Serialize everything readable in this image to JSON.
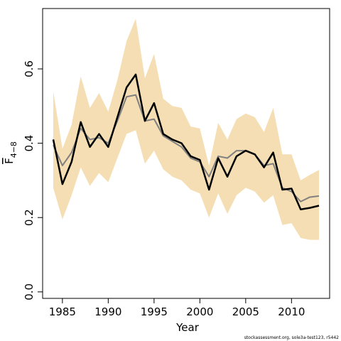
{
  "chart_data": {
    "type": "line",
    "x_label": "Year",
    "y_label": {
      "main": "F",
      "subscript": "4−8"
    },
    "footer": "stockassessment.org, sole3a-test123, r5442",
    "x": [
      1984,
      1985,
      1986,
      1987,
      1988,
      1989,
      1990,
      1991,
      1992,
      1993,
      1994,
      1995,
      1996,
      1997,
      1998,
      1999,
      2000,
      2001,
      2002,
      2003,
      2004,
      2005,
      2006,
      2007,
      2008,
      2009,
      2010,
      2011,
      2012,
      2013
    ],
    "band": {
      "color": "#f5deb3",
      "upper": [
        0.54,
        0.385,
        0.45,
        0.58,
        0.495,
        0.535,
        0.485,
        0.57,
        0.675,
        0.735,
        0.575,
        0.64,
        0.52,
        0.5,
        0.495,
        0.445,
        0.44,
        0.34,
        0.455,
        0.41,
        0.465,
        0.48,
        0.47,
        0.43,
        0.495,
        0.37,
        0.37,
        0.3,
        0.315,
        0.328
      ],
      "lower": [
        0.28,
        0.195,
        0.26,
        0.335,
        0.285,
        0.32,
        0.295,
        0.36,
        0.425,
        0.435,
        0.345,
        0.38,
        0.33,
        0.31,
        0.3,
        0.275,
        0.265,
        0.2,
        0.265,
        0.21,
        0.26,
        0.28,
        0.27,
        0.24,
        0.26,
        0.18,
        0.185,
        0.145,
        0.14,
        0.14
      ]
    },
    "series": [
      {
        "color": "#808080",
        "width": 2,
        "values": [
          0.395,
          0.34,
          0.375,
          0.44,
          0.41,
          0.415,
          0.4,
          0.46,
          0.525,
          0.53,
          0.46,
          0.465,
          0.42,
          0.405,
          0.39,
          0.36,
          0.35,
          0.31,
          0.365,
          0.36,
          0.38,
          0.38,
          0.37,
          0.34,
          0.345,
          0.28,
          0.27,
          0.243,
          0.255,
          0.258
        ]
      },
      {
        "color": "#000000",
        "width": 2.5,
        "values": [
          0.41,
          0.29,
          0.35,
          0.457,
          0.39,
          0.425,
          0.39,
          0.47,
          0.55,
          0.585,
          0.46,
          0.508,
          0.425,
          0.41,
          0.4,
          0.365,
          0.355,
          0.275,
          0.36,
          0.31,
          0.365,
          0.38,
          0.37,
          0.335,
          0.375,
          0.275,
          0.278,
          0.222,
          0.226,
          0.232
        ]
      }
    ],
    "xlim": [
      1982.84,
      2014.16
    ],
    "xticks": [
      1985,
      1990,
      1995,
      2000,
      2005,
      2010
    ],
    "ylim": [
      -0.0175,
      0.7625
    ],
    "yticks": [
      {
        "value": 0,
        "label": "0.0"
      },
      0.2,
      0.4,
      0.6
    ]
  }
}
